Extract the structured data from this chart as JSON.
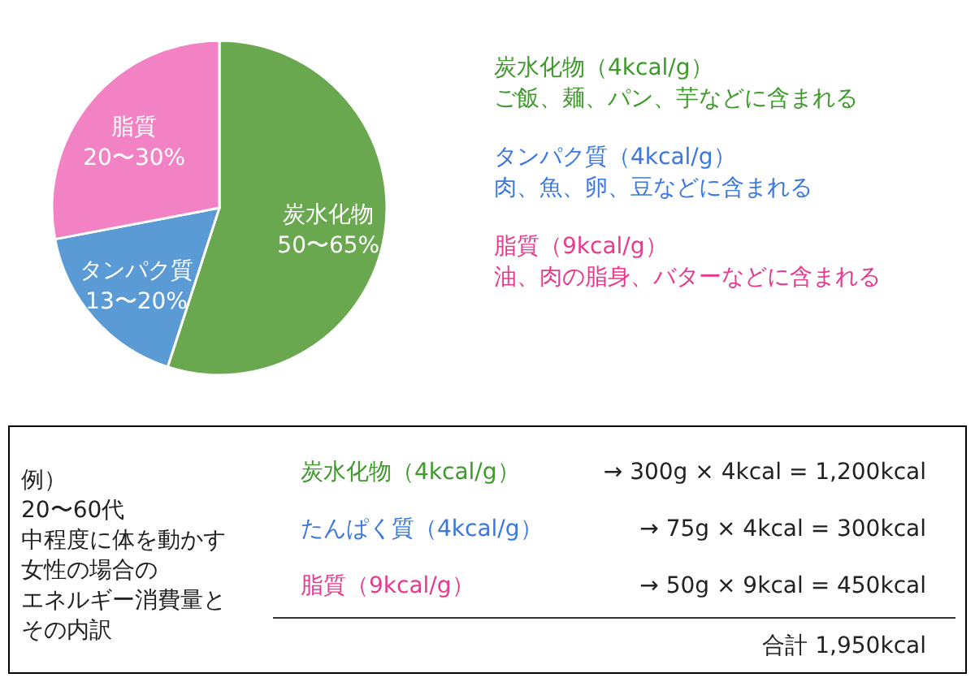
{
  "chart_data": {
    "type": "pie",
    "categories": [
      "炭水化物",
      "タンパク質",
      "脂質"
    ],
    "values": [
      55,
      17,
      28
    ],
    "colors": [
      "#6aa84f",
      "#5b9bd5",
      "#f382c4"
    ],
    "annotations": [
      {
        "text": "50〜65%",
        "x": "炭水化物"
      },
      {
        "text": "13〜20%",
        "x": "タンパク質"
      },
      {
        "text": "20〜30%",
        "x": "脂質"
      },
      "炭水化物（4kcal/g）",
      "ご飯、麺、パン、芋などに含まれる",
      "タンパク質（4kcal/g）",
      "肉、魚、卵、豆などに含まれる",
      "脂質（9kcal/g）",
      "油、肉の脂身、バターなどに含まれる",
      "例）",
      "20〜60代",
      "中程度に体を動かす",
      "女性の場合の",
      "エネルギー消費量と",
      "その内訳",
      "炭水化物（4kcal/g）",
      "たんぱく質（4kcal/g）",
      "脂質（9kcal/g）",
      "→ 300g × 4kcal = 1,200kcal",
      "→ 75g × 4kcal = 300kcal",
      "→ 50g × 9kcal = 450kcal",
      "合計 1,950kcal"
    ]
  }
}
